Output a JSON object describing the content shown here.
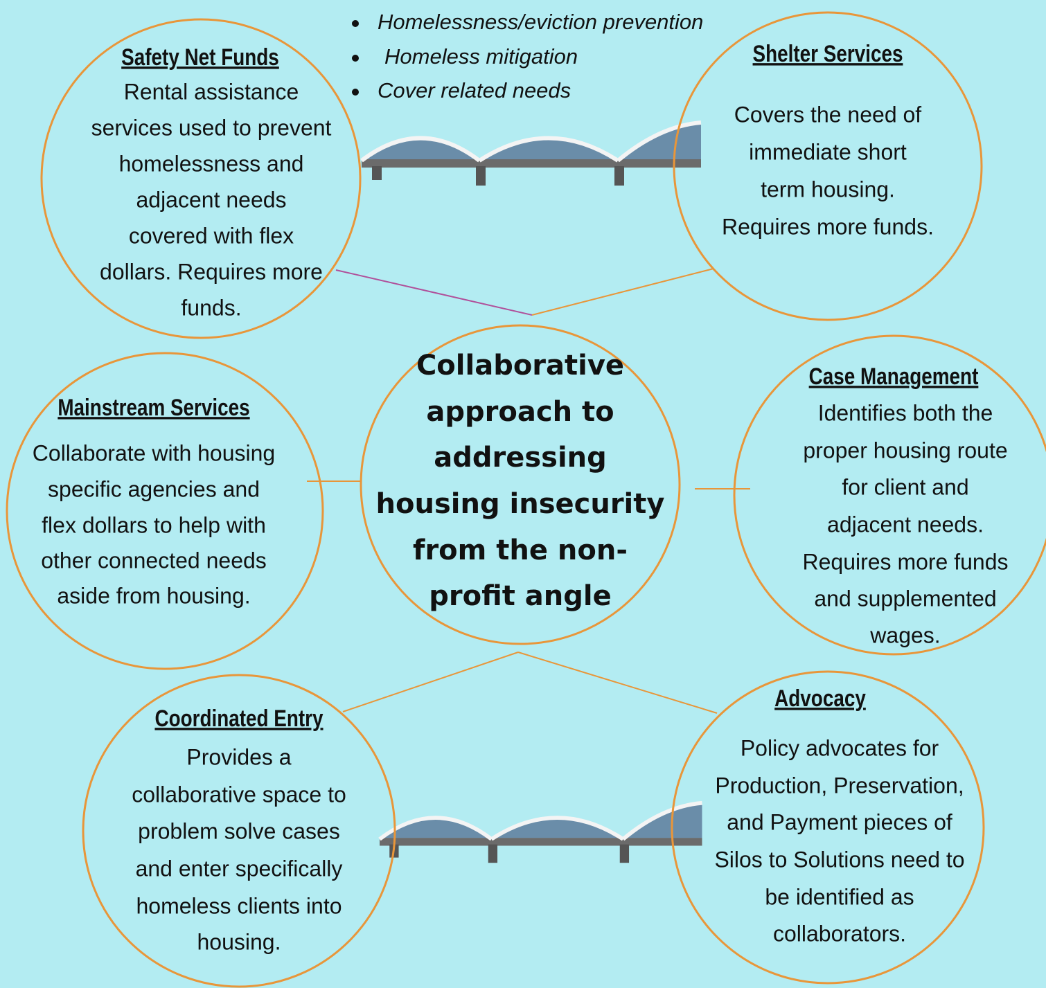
{
  "bullets": [
    "Homelessness/eviction prevention",
    "Homeless mitigation",
    "Cover related needs"
  ],
  "center": {
    "lines": [
      "Collaborative",
      "approach to",
      "addressing",
      "housing insecurity",
      "from the non-",
      "profit angle"
    ]
  },
  "nodes": [
    {
      "title": "Safety Net Funds",
      "lines": [
        "Rental assistance",
        "services used to prevent",
        "homelessness and",
        "adjacent needs",
        "covered with flex",
        "dollars. Requires more",
        "funds."
      ]
    },
    {
      "title": "Shelter Services",
      "lines": [
        "Covers the need of",
        "immediate short",
        "term housing.",
        "Requires more funds."
      ]
    },
    {
      "title": "Mainstream Services",
      "lines": [
        "Collaborate with housing",
        "specific agencies and",
        "flex dollars to help with",
        "other connected needs",
        "aside from housing."
      ]
    },
    {
      "title": "Case Management",
      "lines": [
        "Identifies both the",
        "proper housing route",
        "for client and",
        "adjacent needs.",
        "Requires more funds",
        "and supplemented",
        "wages."
      ]
    },
    {
      "title": "Coordinated Entry",
      "lines": [
        "Provides a",
        "collaborative space to",
        "problem solve cases",
        "and enter specifically",
        "homeless clients into",
        "housing."
      ]
    },
    {
      "title": "Advocacy",
      "lines": [
        "Policy advocates for",
        "Production, Preservation,",
        "and Payment pieces of",
        "Silos to Solutions need to",
        "be identified as",
        "collaborators."
      ]
    }
  ]
}
